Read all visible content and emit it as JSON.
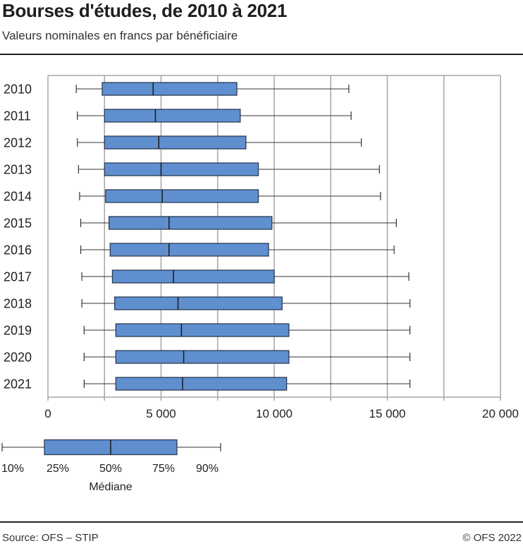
{
  "header": {
    "title": "Bourses d'études, de 2010 à 2021",
    "subtitle": "Valeurs nominales en francs par bénéficiaire"
  },
  "footer": {
    "source": "Source: OFS – STIP",
    "copyright": "© OFS 2022"
  },
  "colors": {
    "box_fill": "#5F8FCF",
    "box_stroke": "#2B3B55",
    "whisker": "#333333",
    "grid": "#A6A6A6"
  },
  "legend": {
    "labels": [
      "10%",
      "25%",
      "50%",
      "75%",
      "90%"
    ],
    "median_label": "Médiane"
  },
  "chart_data": {
    "type": "boxplot",
    "orientation": "horizontal",
    "title": "Bourses d'études, de 2010 à 2021",
    "subtitle": "Valeurs nominales en francs par bénéficiaire",
    "xlabel": "",
    "ylabel": "",
    "xlim": [
      0,
      20000
    ],
    "x_ticks": [
      0,
      5000,
      10000,
      15000,
      20000
    ],
    "x_tick_labels": [
      "0",
      "5 000",
      "10 000",
      "15 000",
      "20 000"
    ],
    "x_gridlines": [
      2500,
      5000,
      7500,
      10000,
      12500,
      15000,
      17500,
      20000
    ],
    "grid": true,
    "legend_position": "bottom-left",
    "stats": [
      "p10",
      "p25",
      "median",
      "p75",
      "p90"
    ],
    "categories": [
      "2010",
      "2011",
      "2012",
      "2013",
      "2014",
      "2015",
      "2016",
      "2017",
      "2018",
      "2019",
      "2020",
      "2021"
    ],
    "series": [
      {
        "year": "2010",
        "p10": 1250,
        "p25": 2400,
        "median": 4650,
        "p75": 8350,
        "p90": 13300
      },
      {
        "year": "2011",
        "p10": 1300,
        "p25": 2500,
        "median": 4750,
        "p75": 8500,
        "p90": 13400
      },
      {
        "year": "2012",
        "p10": 1300,
        "p25": 2500,
        "median": 4900,
        "p75": 8750,
        "p90": 13850
      },
      {
        "year": "2013",
        "p10": 1350,
        "p25": 2500,
        "median": 5000,
        "p75": 9300,
        "p90": 14650
      },
      {
        "year": "2014",
        "p10": 1400,
        "p25": 2550,
        "median": 5050,
        "p75": 9300,
        "p90": 14700
      },
      {
        "year": "2015",
        "p10": 1450,
        "p25": 2700,
        "median": 5350,
        "p75": 9900,
        "p90": 15400
      },
      {
        "year": "2016",
        "p10": 1450,
        "p25": 2750,
        "median": 5350,
        "p75": 9750,
        "p90": 15300
      },
      {
        "year": "2017",
        "p10": 1500,
        "p25": 2850,
        "median": 5550,
        "p75": 10000,
        "p90": 15950
      },
      {
        "year": "2018",
        "p10": 1500,
        "p25": 2950,
        "median": 5750,
        "p75": 10350,
        "p90": 16000
      },
      {
        "year": "2019",
        "p10": 1600,
        "p25": 3000,
        "median": 5900,
        "p75": 10650,
        "p90": 16000
      },
      {
        "year": "2020",
        "p10": 1600,
        "p25": 3000,
        "median": 6000,
        "p75": 10650,
        "p90": 16000
      },
      {
        "year": "2021",
        "p10": 1600,
        "p25": 3000,
        "median": 5950,
        "p75": 10550,
        "p90": 16000
      }
    ]
  }
}
